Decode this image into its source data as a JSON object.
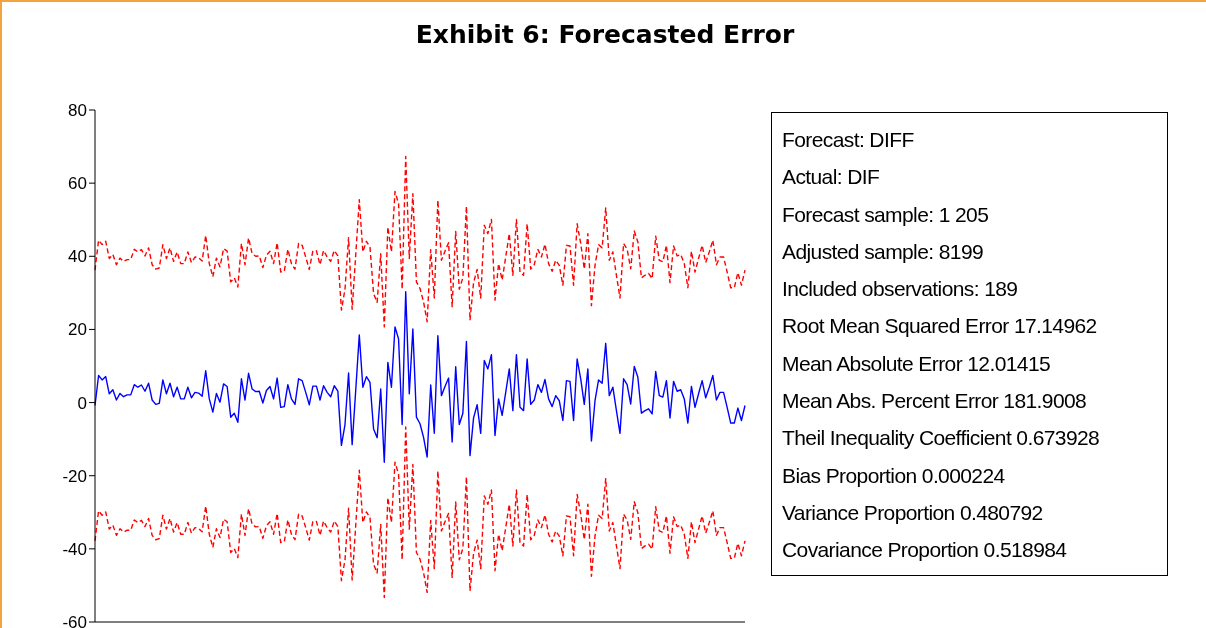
{
  "chart_data": {
    "type": "line",
    "title": "Exhibit 6: Forecasted Error",
    "categories": [
      null,
      null,
      null,
      null,
      null,
      null,
      null,
      null,
      null,
      null,
      null,
      null,
      null,
      null,
      null,
      null,
      null,
      null,
      null,
      null,
      null,
      null,
      null,
      null,
      null,
      null,
      null,
      null,
      null,
      null,
      null,
      null,
      null,
      null,
      null,
      null,
      null,
      null,
      null,
      null,
      null,
      null,
      null,
      null,
      null,
      null,
      null,
      null,
      null,
      null,
      null,
      null,
      null,
      null,
      null,
      null,
      null,
      null,
      null,
      null,
      null,
      null,
      null,
      null,
      null,
      null,
      null,
      null,
      null,
      null,
      null,
      null,
      null,
      null,
      null,
      null,
      null,
      null,
      null,
      null,
      null,
      null,
      null,
      null,
      null,
      null,
      null,
      null,
      null,
      null,
      null,
      null,
      null,
      null,
      null,
      null,
      null,
      null,
      null,
      null,
      null,
      null,
      null,
      null,
      null,
      null,
      null,
      null,
      null,
      null,
      null,
      null,
      null,
      null,
      null,
      null,
      null,
      null,
      null,
      null,
      null,
      null,
      null,
      null,
      null,
      null,
      null,
      null,
      null,
      null,
      null,
      null,
      null,
      null,
      null,
      null,
      null,
      null,
      null,
      null,
      null,
      null,
      null,
      null,
      null,
      null,
      null,
      null,
      null,
      null,
      null,
      null,
      null,
      null,
      null,
      null,
      null,
      null,
      null,
      null,
      null,
      null,
      null,
      null,
      null,
      null,
      null,
      null,
      null,
      null,
      null,
      null,
      null,
      null,
      null,
      null,
      null,
      null,
      null,
      null,
      null,
      null,
      null
    ],
    "series": [
      {
        "color": "#0000ff",
        "line_style": "solid",
        "values": [
          -0.8,
          7.4,
          6.2,
          7.1,
          2.4,
          3.5,
          0.7,
          2.5,
          1.6,
          2.1,
          2.1,
          4.9,
          4.2,
          4.8,
          3.1,
          5.3,
          0.7,
          -0.5,
          -0.2,
          6.2,
          2.4,
          5.3,
          1.6,
          4.2,
          1.0,
          1.0,
          4.2,
          1.3,
          2.8,
          2.6,
          1.7,
          8.7,
          1.0,
          -2.6,
          2.5,
          0.1,
          5.1,
          4.4,
          -4.0,
          -2.9,
          -5.4,
          6.5,
          0.7,
          8.0,
          3.7,
          3.0,
          3.1,
          -0.1,
          3.3,
          4.4,
          1.0,
          6.7,
          -1.3,
          -1.1,
          4.9,
          1.0,
          -0.5,
          6.5,
          6.0,
          2.8,
          -0.6,
          4.5,
          4.5,
          0.7,
          4.6,
          2.8,
          1.6,
          4.6,
          3.1,
          -11.7,
          -6.0,
          8.1,
          -11.5,
          3.3,
          18.5,
          4.2,
          7.1,
          5.5,
          -7.2,
          -9.6,
          3.7,
          -16.3,
          11.0,
          4.2,
          20.7,
          17.4,
          -6.0,
          30.3,
          2.4,
          20.1,
          -4.0,
          -5.8,
          -9.5,
          -14.9,
          4.8,
          -8.4,
          18.3,
          1.9,
          4.4,
          6.7,
          -10.8,
          9.8,
          -6.0,
          -2.9,
          16.7,
          -14.5,
          -4.2,
          -0.6,
          -8.4,
          11.5,
          9.2,
          13.1,
          -9.0,
          1.0,
          -3.5,
          2.8,
          9.2,
          -2.2,
          13.1,
          -1.3,
          -2.2,
          11.9,
          -0.5,
          0.7,
          4.9,
          2.8,
          6.3,
          1.0,
          -1.1,
          1.9,
          0.5,
          -4.9,
          6.0,
          5.8,
          -4.9,
          11.9,
          6.5,
          -0.5,
          9.2,
          -10.5,
          0.5,
          6.2,
          5.3,
          16.2,
          1.9,
          4.2,
          -2.2,
          -8.4,
          6.5,
          4.9,
          -0.4,
          9.9,
          6.9,
          -2.9,
          -2.2,
          -1.7,
          -3.1,
          8.5,
          1.9,
          1.5,
          6.0,
          -4.2,
          5.8,
          3.1,
          3.5,
          1.0,
          -5.6,
          4.4,
          -1.3,
          2.4,
          6.0,
          1.3,
          4.2,
          7.4,
          0.7,
          2.8,
          2.8,
          -1.3,
          -5.6,
          -5.6,
          -1.5,
          -4.9,
          -0.8
        ]
      },
      {
        "color": "#ff0000",
        "line_style": "dashed",
        "values": [
          36.2,
          44.4,
          43.2,
          44.1,
          39.4,
          40.5,
          37.7,
          39.5,
          38.6,
          39.1,
          39.1,
          41.9,
          41.2,
          41.8,
          40.1,
          42.3,
          37.7,
          36.5,
          36.8,
          43.2,
          39.4,
          42.3,
          38.6,
          41.2,
          38.0,
          38.0,
          41.2,
          38.3,
          39.8,
          39.6,
          38.7,
          45.7,
          38.0,
          34.4,
          39.5,
          37.1,
          42.1,
          41.4,
          33.0,
          34.1,
          31.6,
          43.5,
          37.7,
          45.0,
          40.7,
          40.0,
          40.1,
          36.9,
          40.3,
          41.4,
          38.0,
          43.7,
          35.7,
          35.9,
          41.9,
          38.0,
          36.5,
          43.5,
          43.0,
          39.8,
          36.4,
          41.5,
          41.5,
          37.7,
          41.6,
          39.8,
          38.6,
          41.6,
          40.1,
          25.3,
          31.0,
          45.1,
          25.5,
          40.3,
          55.5,
          41.2,
          44.1,
          42.5,
          29.8,
          27.4,
          40.7,
          20.7,
          48.0,
          41.2,
          57.7,
          54.4,
          31.0,
          67.3,
          39.4,
          57.1,
          33.0,
          31.2,
          27.5,
          22.1,
          41.8,
          28.6,
          55.3,
          38.9,
          41.4,
          43.7,
          26.2,
          46.8,
          31.0,
          34.1,
          53.7,
          22.5,
          32.8,
          36.4,
          28.6,
          48.5,
          46.2,
          50.1,
          28.0,
          38.0,
          33.5,
          39.8,
          46.2,
          34.8,
          50.1,
          35.7,
          34.8,
          48.9,
          36.5,
          37.7,
          41.9,
          39.8,
          43.3,
          38.0,
          35.9,
          38.9,
          37.5,
          32.1,
          43.0,
          42.8,
          32.1,
          48.9,
          43.5,
          36.5,
          46.2,
          26.5,
          37.5,
          43.2,
          42.3,
          53.2,
          38.9,
          41.2,
          34.8,
          28.6,
          43.5,
          41.9,
          36.6,
          46.9,
          43.9,
          34.1,
          34.8,
          35.3,
          33.9,
          45.5,
          38.9,
          38.5,
          43.0,
          32.8,
          42.8,
          40.1,
          40.5,
          38.0,
          31.4,
          41.4,
          35.7,
          39.4,
          43.0,
          38.3,
          41.2,
          44.4,
          37.7,
          39.8,
          39.8,
          35.7,
          31.4,
          31.4,
          35.5,
          32.1,
          36.2
        ]
      },
      {
        "color": "#ff0000",
        "line_style": "dashed",
        "values": [
          -37.8,
          -29.6,
          -30.8,
          -29.9,
          -34.6,
          -33.5,
          -36.3,
          -34.5,
          -35.4,
          -34.9,
          -34.9,
          -32.1,
          -32.8,
          -32.2,
          -33.9,
          -31.7,
          -36.3,
          -37.5,
          -37.2,
          -30.8,
          -34.6,
          -31.7,
          -35.4,
          -32.8,
          -36.0,
          -36.0,
          -32.8,
          -35.7,
          -34.2,
          -34.4,
          -35.3,
          -28.3,
          -36.0,
          -39.6,
          -34.5,
          -36.9,
          -31.9,
          -32.6,
          -41.0,
          -39.9,
          -42.4,
          -30.5,
          -36.3,
          -29.0,
          -33.3,
          -34.0,
          -33.9,
          -37.1,
          -33.7,
          -32.6,
          -36.0,
          -30.3,
          -38.3,
          -38.1,
          -32.1,
          -36.0,
          -37.5,
          -30.5,
          -31.0,
          -34.2,
          -37.6,
          -32.5,
          -32.5,
          -36.3,
          -32.4,
          -34.2,
          -35.4,
          -32.4,
          -33.9,
          -48.7,
          -43.0,
          -28.9,
          -48.5,
          -33.7,
          -18.5,
          -32.8,
          -29.9,
          -31.5,
          -44.2,
          -46.6,
          -33.3,
          -53.3,
          -26.0,
          -32.8,
          -16.3,
          -19.6,
          -43.0,
          -6.7,
          -34.6,
          -16.9,
          -41.0,
          -42.8,
          -46.5,
          -51.9,
          -32.2,
          -45.4,
          -18.7,
          -35.1,
          -32.6,
          -30.3,
          -47.8,
          -27.2,
          -43.0,
          -39.9,
          -20.3,
          -51.5,
          -41.2,
          -37.6,
          -45.4,
          -25.5,
          -27.8,
          -23.9,
          -46.0,
          -36.0,
          -40.5,
          -34.2,
          -27.8,
          -39.2,
          -23.9,
          -38.3,
          -39.2,
          -25.1,
          -37.5,
          -36.3,
          -32.1,
          -34.2,
          -30.7,
          -36.0,
          -38.1,
          -35.1,
          -36.5,
          -41.9,
          -31.0,
          -31.2,
          -41.9,
          -25.1,
          -30.5,
          -37.5,
          -27.8,
          -47.5,
          -36.5,
          -30.8,
          -31.7,
          -20.8,
          -35.1,
          -32.8,
          -39.2,
          -45.4,
          -30.5,
          -32.1,
          -37.4,
          -27.1,
          -30.1,
          -39.9,
          -39.2,
          -38.7,
          -40.1,
          -28.5,
          -35.1,
          -35.5,
          -31.0,
          -41.2,
          -31.2,
          -33.9,
          -33.5,
          -36.0,
          -42.6,
          -32.6,
          -38.3,
          -34.6,
          -31.0,
          -35.7,
          -32.8,
          -29.6,
          -36.3,
          -34.2,
          -34.2,
          -38.3,
          -42.6,
          -42.6,
          -38.5,
          -41.9,
          -37.8
        ]
      }
    ],
    "ylim": [
      -60,
      80
    ],
    "yticks": [
      -60,
      -40,
      -20,
      0,
      20,
      40,
      60,
      80
    ],
    "tick_labels": "y",
    "annotations": [
      "Forecast: DIFF",
      "Actual: DIF",
      "Forecast sample: 1 205",
      "Adjusted sample: 8199",
      "Included observations: 189",
      "Root Mean Squared Error 17.14962",
      "Mean Absolute Error 12.01415",
      "Mean Abs. Percent Error 181.9008",
      "Theil Inequality Coefficient 0.673928",
      "Bias Proportion 0.000224",
      "Variance Proportion 0.480792",
      "Covariance Proportion 0.518984"
    ]
  }
}
